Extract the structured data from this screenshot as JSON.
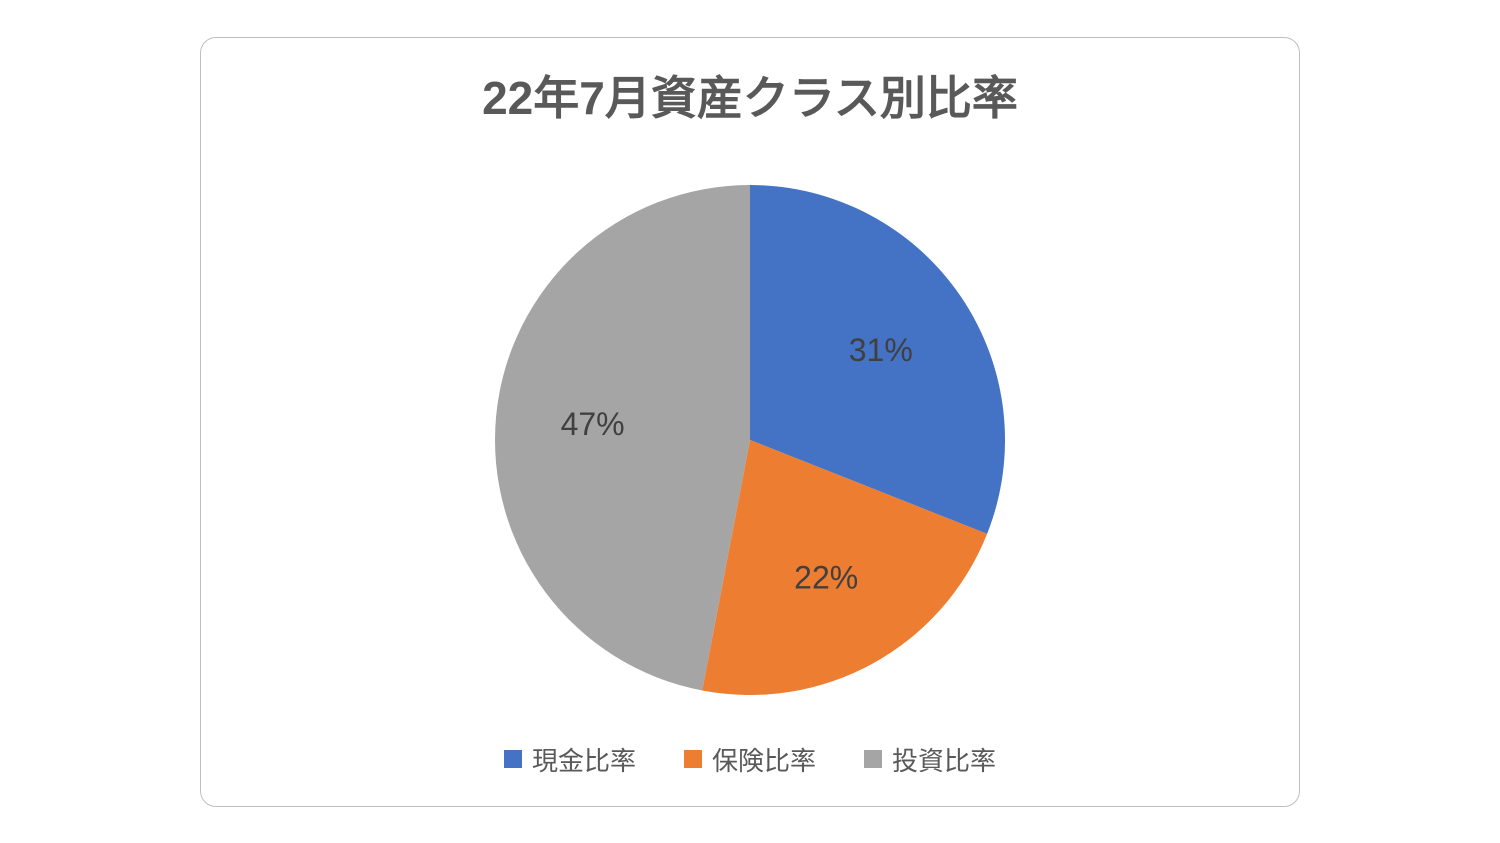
{
  "chart": {
    "type": "pie",
    "title": "22年7月資産クラス別比率",
    "title_fontsize": 46,
    "title_color": "#595959",
    "background_color": "#ffffff",
    "border_color": "#bfbfbf",
    "border_radius": 16,
    "pie_radius": 255,
    "label_fontsize": 32,
    "label_color": "#404040",
    "legend_fontsize": 26,
    "legend_color": "#595959",
    "slices": [
      {
        "label": "現金比率",
        "value": 31,
        "display": "31%",
        "color": "#4472c4"
      },
      {
        "label": "保険比率",
        "value": 22,
        "display": "22%",
        "color": "#ed7d31"
      },
      {
        "label": "投資比率",
        "value": 47,
        "display": "47%",
        "color": "#a5a5a5"
      }
    ]
  }
}
